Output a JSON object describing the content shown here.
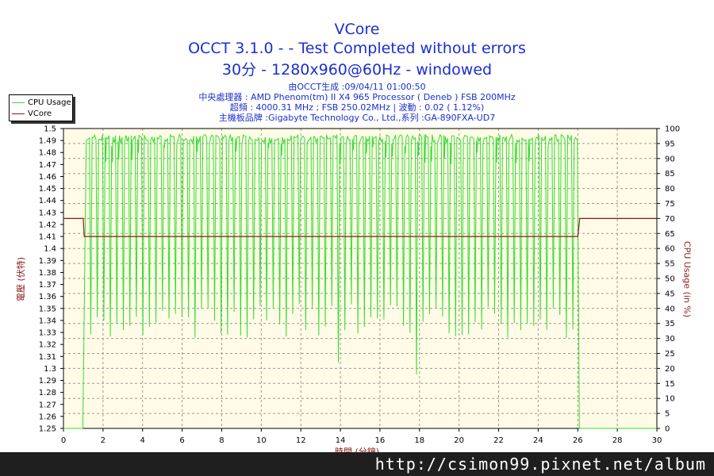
{
  "chart_data": {
    "type": "line",
    "title": "VCore",
    "subtitle_lines": [
      "OCCT 3.1.0 -  - Test Completed without errors",
      "30分 - 1280x960@60Hz - windowed"
    ],
    "info_lines": [
      "由OCCT生成 :09/04/11 01:00:50",
      "中央處理器 : AMD Phenom(tm) II X4 965 Processor ( Deneb ) FSB 200MHz",
      "超頻 : 4000.31 MHz ; FSB 250.02MHz | 波動 : 0.02 ( 1.12%)",
      "主機板品牌 :Gigabyte Technology Co., Ltd.,系列 :GA-890FXA-UD7"
    ],
    "xlabel": "時間 (分鐘)",
    "ylabel_left": "電壓 (伏特)",
    "ylabel_right": "CPU Usage (in %)",
    "xlim": [
      0,
      30
    ],
    "ylim_left": [
      1.25,
      1.5
    ],
    "ylim_right": [
      0,
      100
    ],
    "x_ticks": [
      0,
      2,
      4,
      6,
      8,
      10,
      12,
      14,
      16,
      18,
      20,
      22,
      24,
      26,
      28,
      30
    ],
    "y_left_ticks": [
      "1.5",
      "1.49",
      "1.48",
      "1.47",
      "1.46",
      "1.45",
      "1.44",
      "1.43",
      "1.42",
      "1.41",
      "1.4",
      "1.39",
      "1.38",
      "1.37",
      "1.36",
      "1.35",
      "1.34",
      "1.33",
      "1.32",
      "1.31",
      "1.3",
      "1.29",
      "1.28",
      "1.27",
      "1.26",
      "1.25"
    ],
    "y_right_ticks": [
      "100",
      "95",
      "90",
      "85",
      "80",
      "75",
      "70",
      "65",
      "60",
      "55",
      "50",
      "45",
      "40",
      "35",
      "30",
      "25",
      "20",
      "15",
      "10",
      "5",
      "0"
    ],
    "grid": true,
    "legend_position": "top-left",
    "series": [
      {
        "name": "CPU Usage",
        "axis": "right",
        "color": "#33dd33",
        "description_points": [
          [
            0,
            0
          ],
          [
            0.9,
            0
          ],
          [
            1.0,
            0
          ],
          [
            1.05,
            40
          ],
          [
            1.15,
            88
          ],
          [
            1.2,
            98
          ],
          [
            26.0,
            98
          ],
          [
            26.05,
            50
          ],
          [
            26.1,
            0
          ],
          [
            30,
            0
          ]
        ],
        "active_range": [
          1.0,
          26.0
        ],
        "active_high": 98,
        "active_low": 30
      },
      {
        "name": "VCore",
        "axis": "left",
        "color": "#8b1a1a",
        "x": [
          0,
          1.0,
          1.05,
          26.0,
          26.1,
          30
        ],
        "y": [
          1.425,
          1.425,
          1.41,
          1.41,
          1.425,
          1.425
        ]
      }
    ]
  },
  "legend": {
    "items": [
      "CPU Usage",
      "VCore"
    ],
    "colors": [
      "#33dd33",
      "#8b1a1a"
    ]
  },
  "watermark": "http://csimon99.pixnet.net/album"
}
